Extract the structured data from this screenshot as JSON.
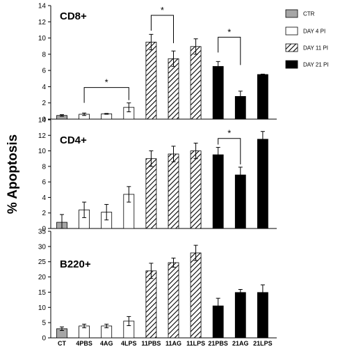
{
  "y_axis_title": "% Apoptosis",
  "legend": [
    {
      "label": "CTR",
      "style": "gray"
    },
    {
      "label": "DAY 4 PI",
      "style": "white"
    },
    {
      "label": "DAY 11 PI",
      "style": "hatch"
    },
    {
      "label": "DAY 21 PI",
      "style": "black"
    }
  ],
  "colors": {
    "gray": "#a6a6a6",
    "black": "#000000",
    "white": "#ffffff",
    "hatch": "#000000"
  },
  "chart_data": [
    {
      "type": "bar",
      "title": "CD8+",
      "categories": [
        "CT",
        "4PBS",
        "4AG",
        "4LPS",
        "11PBS",
        "11AG",
        "11LPS",
        "21PBS",
        "21AG",
        "21LPS"
      ],
      "values": [
        0.45,
        0.6,
        0.65,
        1.45,
        9.5,
        7.45,
        8.95,
        6.5,
        2.8,
        5.5
      ],
      "errors": [
        0.1,
        0.15,
        0.05,
        0.55,
        0.95,
        0.95,
        0.95,
        0.6,
        0.65,
        0.05
      ],
      "styles": [
        "gray",
        "white",
        "white",
        "white",
        "hatch",
        "hatch",
        "hatch",
        "black",
        "black",
        "black"
      ],
      "ylim": [
        0,
        14
      ],
      "yticks": [
        0,
        2,
        4,
        6,
        8,
        10,
        12,
        14
      ],
      "annotations": [
        {
          "from": "4PBS",
          "to": "4LPS",
          "level": 3.9,
          "text": "*"
        },
        {
          "from": "11PBS",
          "to": "11AG",
          "level": 12.8,
          "text": "*"
        },
        {
          "from": "21PBS",
          "to": "21AG",
          "level": 10.1,
          "text": "*"
        }
      ]
    },
    {
      "type": "bar",
      "title": "CD4+",
      "categories": [
        "CT",
        "4PBS",
        "4AG",
        "4LPS",
        "11PBS",
        "11AG",
        "11LPS",
        "21PBS",
        "21AG",
        "21LPS"
      ],
      "values": [
        0.8,
        2.4,
        2.1,
        4.4,
        9.0,
        9.6,
        10.0,
        9.5,
        6.9,
        11.5
      ],
      "errors": [
        1.0,
        1.0,
        1.0,
        1.0,
        1.0,
        1.0,
        1.0,
        0.95,
        1.0,
        1.0
      ],
      "styles": [
        "gray",
        "white",
        "white",
        "white",
        "hatch",
        "hatch",
        "hatch",
        "black",
        "black",
        "black"
      ],
      "ylim": [
        0,
        14
      ],
      "yticks": [
        0,
        2,
        4,
        6,
        8,
        10,
        12,
        14
      ],
      "annotations": [
        {
          "from": "21PBS",
          "to": "21AG",
          "level": 11.6,
          "text": "*"
        }
      ]
    },
    {
      "type": "bar",
      "title": "B220+",
      "categories": [
        "CT",
        "4PBS",
        "4AG",
        "4LPS",
        "11PBS",
        "11AG",
        "11LPS",
        "21PBS",
        "21AG",
        "21LPS"
      ],
      "values": [
        3.0,
        3.9,
        3.9,
        5.5,
        22.0,
        24.7,
        27.9,
        10.5,
        14.9,
        14.9
      ],
      "errors": [
        0.6,
        0.6,
        0.6,
        1.5,
        2.5,
        1.5,
        2.5,
        2.5,
        1.0,
        2.5
      ],
      "styles": [
        "gray",
        "white",
        "white",
        "white",
        "hatch",
        "hatch",
        "hatch",
        "black",
        "black",
        "black"
      ],
      "ylim": [
        0,
        35
      ],
      "yticks": [
        0,
        5,
        10,
        15,
        20,
        25,
        30,
        35
      ],
      "annotations": []
    }
  ]
}
